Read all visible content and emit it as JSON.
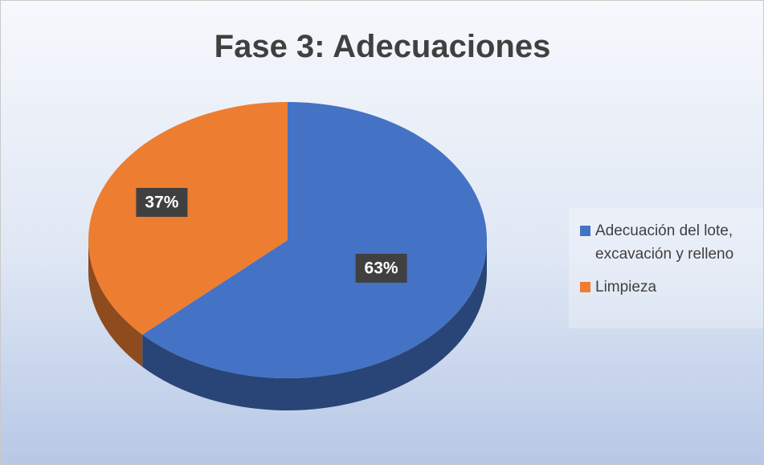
{
  "chart_data": {
    "type": "pie",
    "title": "Fase 3: Adecuaciones",
    "categories": [
      "Adecuación del lote, excavación y relleno",
      "Limpieza"
    ],
    "values": [
      63,
      37
    ],
    "value_labels": [
      "63%",
      "37%"
    ],
    "colors": [
      "#4472c4",
      "#ed7d31"
    ],
    "legend": "right"
  }
}
